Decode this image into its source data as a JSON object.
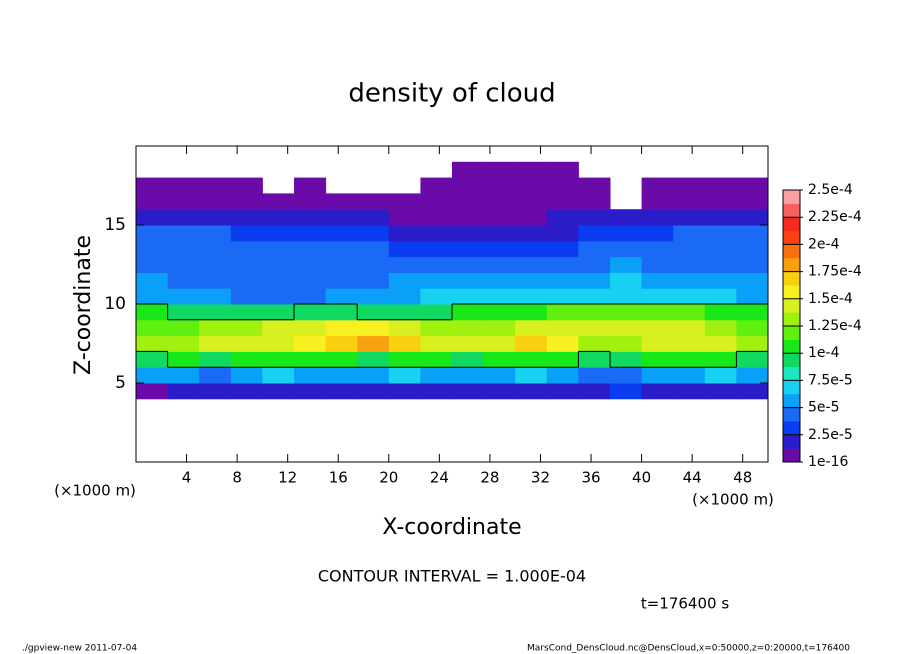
{
  "chart_data": {
    "type": "heatmap",
    "title": "density of cloud",
    "xlabel": "X-coordinate",
    "ylabel": "Z-coordinate",
    "xunit_left": "(×1000 m)",
    "xunit_right": "(×1000 m)",
    "contour_label": "CONTOUR INTERVAL = 1.000E-04",
    "contour_interval": 0.0001,
    "time_label": "t=176400 s",
    "footer_left": "./gpview-new   2011-07-04",
    "footer_right": "MarsCond_DensCloud.nc@DensCloud,x=0:50000,z=0:20000,t=176400",
    "xlim": [
      0,
      50
    ],
    "xticks": [
      4,
      8,
      12,
      16,
      20,
      24,
      28,
      32,
      36,
      40,
      44,
      48
    ],
    "ylim": [
      0,
      20
    ],
    "yticks": [
      5,
      10,
      15
    ],
    "x": [
      1.25,
      3.75,
      6.25,
      8.75,
      11.25,
      13.75,
      16.25,
      18.75,
      21.25,
      23.75,
      26.25,
      28.75,
      31.25,
      33.75,
      36.25,
      38.75,
      41.25,
      43.75,
      46.25,
      48.75
    ],
    "y": [
      4.5,
      5.5,
      6.5,
      7.5,
      8.5,
      9.5,
      10.5,
      11.5,
      12.5,
      13.5,
      14.5,
      15.5,
      16.5,
      17.5,
      18.5
    ],
    "z": [
      [
        1e-05,
        2e-05,
        2e-05,
        2e-05,
        2e-05,
        2e-05,
        2e-05,
        2e-05,
        2e-05,
        2e-05,
        2e-05,
        2e-05,
        2e-05,
        2e-05,
        2e-05,
        3e-05,
        2e-05,
        2e-05,
        2e-05,
        2e-05
      ],
      [
        6e-05,
        6e-05,
        5e-05,
        6e-05,
        7e-05,
        6e-05,
        6e-05,
        6e-05,
        7e-05,
        6e-05,
        6e-05,
        6e-05,
        7e-05,
        6e-05,
        4e-05,
        5e-05,
        6e-05,
        6e-05,
        7e-05,
        6e-05
      ],
      [
        9e-05,
        0.000105,
        0.0001,
        0.00011,
        0.000105,
        0.00011,
        0.000105,
        0.0001,
        0.000105,
        0.00011,
        0.0001,
        0.000105,
        0.00011,
        0.000105,
        9e-05,
        0.0001,
        0.000105,
        0.00011,
        0.000105,
        9e-05
      ],
      [
        0.00013,
        0.000135,
        0.00014,
        0.000145,
        0.00015,
        0.00016,
        0.000175,
        0.00018,
        0.00017,
        0.00015,
        0.00014,
        0.000145,
        0.00017,
        0.00016,
        0.00013,
        0.000135,
        0.00014,
        0.000145,
        0.00014,
        0.00013
      ],
      [
        0.00012,
        0.000125,
        0.00013,
        0.000135,
        0.00014,
        0.00015,
        0.00016,
        0.000155,
        0.000145,
        0.000135,
        0.00013,
        0.00013,
        0.00014,
        0.000145,
        0.00014,
        0.000145,
        0.00015,
        0.00014,
        0.00013,
        0.000125
      ],
      [
        0.000105,
        9e-05,
        9e-05,
        9.5e-05,
        9e-05,
        0.0001,
        0.0001,
        9e-05,
        9e-05,
        9.5e-05,
        0.000105,
        0.00011,
        0.00011,
        0.000115,
        0.00012,
        0.000125,
        0.00012,
        0.000115,
        0.00011,
        0.000105
      ],
      [
        6e-05,
        6e-05,
        5.5e-05,
        5e-05,
        4.5e-05,
        5e-05,
        5.5e-05,
        6e-05,
        6e-05,
        6.5e-05,
        7e-05,
        7e-05,
        7.5e-05,
        7e-05,
        7e-05,
        7.5e-05,
        7e-05,
        7e-05,
        6.5e-05,
        6e-05
      ],
      [
        5.5e-05,
        5e-05,
        4.5e-05,
        4e-05,
        4e-05,
        4.5e-05,
        5e-05,
        5e-05,
        5.5e-05,
        5.5e-05,
        6e-05,
        6e-05,
        6e-05,
        6e-05,
        6e-05,
        6.5e-05,
        6e-05,
        6e-05,
        5.5e-05,
        5.5e-05
      ],
      [
        5e-05,
        5e-05,
        4.5e-05,
        4.5e-05,
        4.5e-05,
        5e-05,
        5e-05,
        5e-05,
        5e-05,
        5e-05,
        5e-05,
        4.5e-05,
        4.5e-05,
        5e-05,
        5e-05,
        5.5e-05,
        5e-05,
        5e-05,
        5e-05,
        5e-05
      ],
      [
        4.5e-05,
        4.5e-05,
        4.5e-05,
        4.5e-05,
        4e-05,
        4e-05,
        4e-05,
        4e-05,
        3.5e-05,
        3e-05,
        3e-05,
        3e-05,
        3e-05,
        3.5e-05,
        4e-05,
        4e-05,
        4.5e-05,
        4.5e-05,
        4.5e-05,
        4.5e-05
      ],
      [
        4e-05,
        4e-05,
        4e-05,
        3.5e-05,
        3.5e-05,
        3.5e-05,
        3.5e-05,
        3e-05,
        2.5e-05,
        2e-05,
        2e-05,
        2e-05,
        2e-05,
        2.5e-05,
        3e-05,
        3.5e-05,
        3.5e-05,
        4e-05,
        4e-05,
        4e-05
      ],
      [
        2e-05,
        2e-05,
        2e-05,
        2e-05,
        2e-05,
        2e-05,
        2e-05,
        1.5e-05,
        1e-05,
        1e-05,
        1e-05,
        1e-05,
        1e-05,
        1.5e-05,
        1.5e-05,
        2e-05,
        2e-05,
        2e-05,
        2e-05,
        2e-05
      ],
      [
        5e-06,
        5e-06,
        5e-06,
        5e-06,
        5e-06,
        5e-06,
        5e-06,
        5e-06,
        5e-06,
        5e-06,
        5e-06,
        5e-06,
        5e-06,
        5e-06,
        5e-06,
        null,
        5e-06,
        5e-06,
        5e-06,
        5e-06
      ],
      [
        5e-06,
        5e-06,
        5e-06,
        5e-06,
        null,
        5e-06,
        null,
        null,
        null,
        5e-06,
        5e-06,
        5e-06,
        5e-06,
        5e-06,
        5e-06,
        null,
        5e-06,
        5e-06,
        5e-06,
        5e-06
      ],
      [
        null,
        null,
        null,
        null,
        null,
        null,
        null,
        null,
        null,
        null,
        5e-06,
        5e-06,
        5e-06,
        5e-06,
        null,
        null,
        null,
        null,
        null,
        null
      ]
    ],
    "clim": [
      1e-16,
      0.00025
    ],
    "cticks": [
      {
        "value": 1e-16,
        "label": "1e-16"
      },
      {
        "value": 2.5e-05,
        "label": "2.5e-5"
      },
      {
        "value": 5e-05,
        "label": "5e-5"
      },
      {
        "value": 7.5e-05,
        "label": "7.5e-5"
      },
      {
        "value": 0.0001,
        "label": "1e-4"
      },
      {
        "value": 0.000125,
        "label": "1.25e-4"
      },
      {
        "value": 0.00015,
        "label": "1.5e-4"
      },
      {
        "value": 0.000175,
        "label": "1.75e-4"
      },
      {
        "value": 0.0002,
        "label": "2e-4"
      },
      {
        "value": 0.000225,
        "label": "2.25e-4"
      },
      {
        "value": 0.00025,
        "label": "2.5e-4"
      }
    ],
    "colors": [
      "#6a0aa8",
      "#2a1cc8",
      "#0a3cf0",
      "#1a6af5",
      "#0aa0f8",
      "#18d0f0",
      "#1ce8c0",
      "#10d860",
      "#18e81a",
      "#60f010",
      "#a0f010",
      "#d8f020",
      "#f8f020",
      "#f8d010",
      "#f8a010",
      "#f87010",
      "#f84010",
      "#f82a20",
      "#f86060",
      "#f8a0a0"
    ]
  }
}
